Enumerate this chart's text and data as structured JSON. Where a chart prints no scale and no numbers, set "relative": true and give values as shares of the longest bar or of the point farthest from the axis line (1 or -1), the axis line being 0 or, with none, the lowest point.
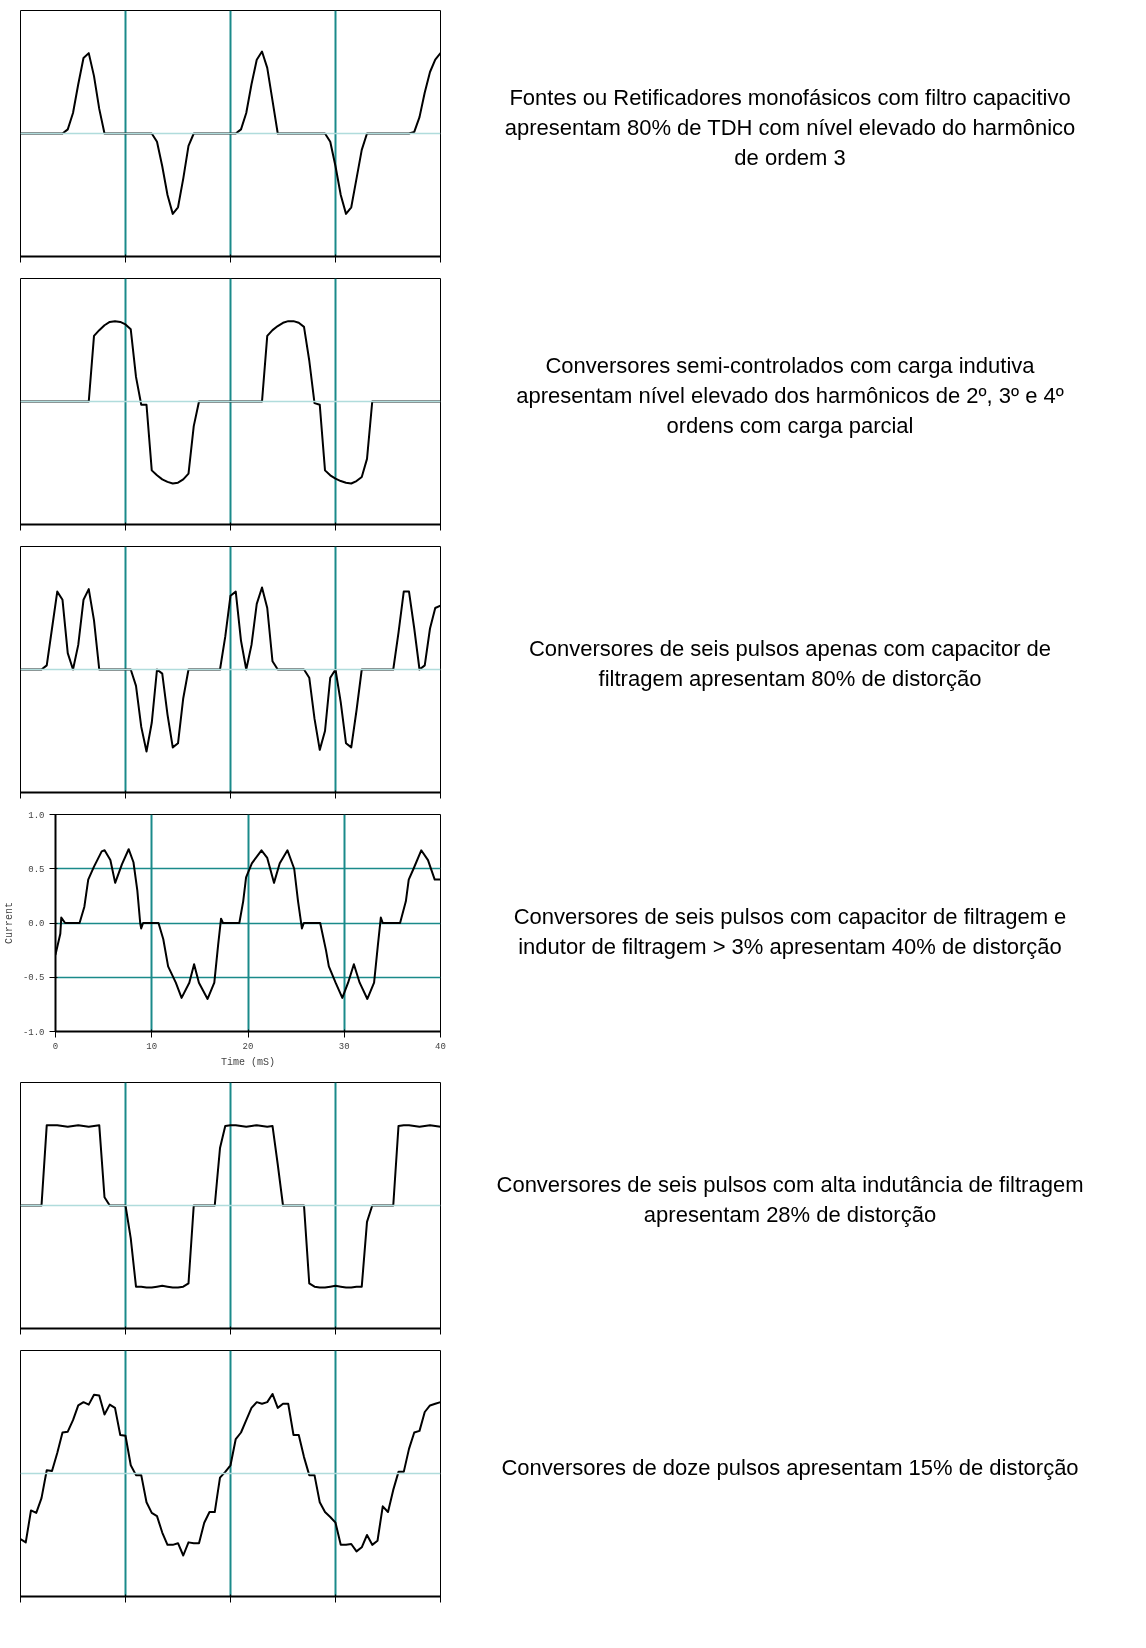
{
  "chart_data": [
    {
      "type": "line",
      "relative": true,
      "color": "#000000",
      "grid": "x",
      "categories": [
        null,
        null,
        null,
        null,
        null,
        null,
        null,
        null,
        null,
        null,
        null,
        null,
        null,
        null,
        null,
        null,
        null,
        null,
        null,
        null,
        null,
        null,
        null,
        null,
        null,
        null,
        null,
        null,
        null,
        null,
        null,
        null,
        null,
        null,
        null,
        null,
        null,
        null,
        null,
        null,
        null,
        null,
        null,
        null,
        null,
        null,
        null,
        null,
        null,
        null,
        null,
        null,
        null,
        null,
        null,
        null,
        null,
        null,
        null,
        null,
        null,
        null,
        null,
        null,
        null,
        null,
        null,
        null,
        null,
        null,
        null,
        null,
        null,
        null,
        null,
        null,
        null,
        null,
        null,
        null,
        null
      ],
      "ref_lines": [
        {
          "axis": "y",
          "value": 0,
          "color": "#b0dcdc"
        }
      ],
      "values": [
        0,
        0,
        0,
        0,
        0,
        0,
        0,
        0,
        0,
        0.05,
        0.25,
        0.6,
        0.92,
        0.98,
        0.7,
        0.3,
        0,
        0,
        0,
        0,
        0,
        0,
        0,
        0,
        0,
        0,
        -0.1,
        -0.4,
        -0.75,
        -0.98,
        -0.9,
        -0.55,
        -0.15,
        0,
        0,
        0,
        0,
        0,
        0,
        0,
        0,
        0,
        0.05,
        0.25,
        0.6,
        0.9,
        1,
        0.8,
        0.4,
        0,
        0,
        0,
        0,
        0,
        0,
        0,
        0,
        0,
        0,
        -0.1,
        -0.4,
        -0.75,
        -0.98,
        -0.9,
        -0.55,
        -0.2,
        0,
        0,
        0,
        0,
        0,
        0,
        0,
        0,
        0,
        0.02,
        0.2,
        0.5,
        0.75,
        0.9,
        0.98
      ],
      "annotations": [
        "Fontes ou Retificadores monofásicos com filtro capacitivo apresentam 80% de TDH com nível elevado do harmônico de ordem 3"
      ]
    },
    {
      "type": "line",
      "relative": true,
      "color": "#000000",
      "grid": "x",
      "categories": [
        null,
        null,
        null,
        null,
        null,
        null,
        null,
        null,
        null,
        null,
        null,
        null,
        null,
        null,
        null,
        null,
        null,
        null,
        null,
        null,
        null,
        null,
        null,
        null,
        null,
        null,
        null,
        null,
        null,
        null,
        null,
        null,
        null,
        null,
        null,
        null,
        null,
        null,
        null,
        null,
        null,
        null,
        null,
        null,
        null,
        null,
        null,
        null,
        null,
        null,
        null,
        null,
        null,
        null,
        null,
        null,
        null,
        null,
        null,
        null,
        null,
        null,
        null,
        null,
        null,
        null,
        null,
        null,
        null,
        null,
        null,
        null,
        null,
        null,
        null,
        null,
        null,
        null,
        null,
        null,
        null
      ],
      "ref_lines": [
        {
          "axis": "y",
          "value": 0,
          "color": "#b0dcdc"
        }
      ],
      "values": [
        0,
        0,
        0,
        0,
        0,
        0,
        0,
        0,
        0,
        0,
        0,
        0,
        0,
        0,
        0.8,
        0.87,
        0.93,
        0.97,
        0.98,
        0.97,
        0.94,
        0.88,
        0.3,
        -0.04,
        -0.04,
        -0.84,
        -0.9,
        -0.95,
        -0.98,
        -1,
        -0.99,
        -0.95,
        -0.88,
        -0.3,
        0,
        0,
        0,
        0,
        0,
        0,
        0,
        0,
        0,
        0,
        0,
        0,
        0,
        0.8,
        0.87,
        0.92,
        0.96,
        0.98,
        0.98,
        0.96,
        0.91,
        0.5,
        -0.02,
        -0.04,
        -0.84,
        -0.9,
        -0.94,
        -0.97,
        -0.99,
        -1,
        -0.97,
        -0.92,
        -0.7,
        0,
        0,
        0,
        0,
        0,
        0,
        0,
        0,
        0,
        0,
        0,
        0,
        0,
        0
      ],
      "annotations": [
        "Conversores semi-controlados com carga indutiva apresentam nível elevado dos harmônicos de 2º, 3º e 4º ordens com carga parcial"
      ]
    },
    {
      "type": "line",
      "relative": true,
      "color": "#000000",
      "grid": "x",
      "categories": [
        null,
        null,
        null,
        null,
        null,
        null,
        null,
        null,
        null,
        null,
        null,
        null,
        null,
        null,
        null,
        null,
        null,
        null,
        null,
        null,
        null,
        null,
        null,
        null,
        null,
        null,
        null,
        null,
        null,
        null,
        null,
        null,
        null,
        null,
        null,
        null,
        null,
        null,
        null,
        null,
        null,
        null,
        null,
        null,
        null,
        null,
        null,
        null,
        null,
        null,
        null,
        null,
        null,
        null,
        null,
        null,
        null,
        null,
        null,
        null,
        null,
        null,
        null,
        null,
        null,
        null,
        null,
        null,
        null,
        null,
        null,
        null,
        null,
        null,
        null,
        null,
        null,
        null,
        null,
        null,
        null
      ],
      "ref_lines": [
        {
          "axis": "y",
          "value": 0,
          "color": "#b0dcdc"
        }
      ],
      "values": [
        0,
        0,
        0,
        0,
        0,
        0.05,
        0.5,
        0.95,
        0.85,
        0.2,
        0,
        0.3,
        0.85,
        0.98,
        0.6,
        0,
        0,
        0,
        0,
        0,
        0,
        0,
        -0.2,
        -0.7,
        -1,
        -0.65,
        0,
        -0.05,
        -0.55,
        -0.95,
        -0.9,
        -0.35,
        0,
        0,
        0,
        0,
        0,
        0,
        0,
        0.4,
        0.9,
        0.95,
        0.35,
        0,
        0.3,
        0.8,
        1,
        0.75,
        0.1,
        0,
        0,
        0,
        0,
        0,
        0,
        -0.1,
        -0.6,
        -0.98,
        -0.75,
        -0.1,
        0,
        -0.4,
        -0.9,
        -0.95,
        -0.5,
        0,
        0,
        0,
        0,
        0,
        0,
        0,
        0.45,
        0.95,
        0.95,
        0.5,
        0,
        0.05,
        0.5,
        0.75,
        0.78
      ],
      "annotations": [
        "Conversores de seis pulsos apenas com capacitor de filtragem apresentam 80% de distorção"
      ]
    },
    {
      "type": "line",
      "color": "#000000",
      "grid": true,
      "xlabel": "Time (mS)",
      "ylabel": "Current",
      "xlim": [
        0,
        40
      ],
      "ylim": [
        -1,
        1
      ],
      "xticks": [
        0,
        10,
        20,
        30,
        40
      ],
      "yticks": [
        {
          "value": -1,
          "label": "-1.0"
        },
        {
          "value": -0.5,
          "label": "-0.5"
        },
        {
          "value": 0,
          "label": "0.0"
        },
        {
          "value": 0.5,
          "label": "0.5"
        },
        {
          "value": 1,
          "label": "1.0"
        }
      ],
      "x": [
        0,
        0.5,
        0.6,
        1.0,
        2.5,
        3.0,
        3.4,
        4.0,
        4.8,
        5.1,
        5.7,
        6.2,
        6.9,
        7.6,
        8.1,
        8.5,
        8.8,
        8.9,
        9.1,
        10.7,
        11.2,
        11.7,
        12.5,
        13.1,
        13.9,
        14.4,
        14.9,
        15.8,
        16.5,
        16.9,
        17.2,
        17.4,
        19.1,
        19.5,
        19.8,
        20.4,
        21.4,
        22.0,
        22.7,
        23.3,
        24.1,
        24.8,
        25.2,
        25.6,
        25.8,
        27.5,
        28.1,
        28.4,
        29.1,
        29.8,
        30.4,
        31.0,
        31.6,
        32.4,
        33.1,
        33.5,
        33.8,
        34.0,
        35.8,
        36.4,
        36.7,
        37.2,
        38.0,
        38.7,
        39.4,
        40
      ],
      "values": [
        -0.29,
        -0.1,
        0.05,
        0,
        0,
        0.15,
        0.4,
        0.52,
        0.66,
        0.67,
        0.58,
        0.37,
        0.54,
        0.68,
        0.56,
        0.3,
        0,
        -0.05,
        0,
        0,
        -0.15,
        -0.4,
        -0.55,
        -0.69,
        -0.55,
        -0.38,
        -0.55,
        -0.7,
        -0.55,
        -0.2,
        0.04,
        0,
        0,
        0.2,
        0.42,
        0.55,
        0.67,
        0.6,
        0.37,
        0.55,
        0.67,
        0.5,
        0.2,
        -0.05,
        0,
        0,
        -0.25,
        -0.4,
        -0.55,
        -0.69,
        -0.55,
        -0.38,
        -0.55,
        -0.7,
        -0.55,
        -0.2,
        0.05,
        0,
        0,
        0.2,
        0.4,
        0.5,
        0.67,
        0.58,
        0.4,
        0.4
      ],
      "annotations": [
        "Conversores de seis pulsos com capacitor de filtragem e indutor de filtragem > 3% apresentam 40% de distorção"
      ]
    },
    {
      "type": "line",
      "relative": true,
      "color": "#000000",
      "grid": "x",
      "categories": [
        null,
        null,
        null,
        null,
        null,
        null,
        null,
        null,
        null,
        null,
        null,
        null,
        null,
        null,
        null,
        null,
        null,
        null,
        null,
        null,
        null,
        null,
        null,
        null,
        null,
        null,
        null,
        null,
        null,
        null,
        null,
        null,
        null,
        null,
        null,
        null,
        null,
        null,
        null,
        null,
        null,
        null,
        null,
        null,
        null,
        null,
        null,
        null,
        null,
        null,
        null,
        null,
        null,
        null,
        null,
        null,
        null,
        null,
        null,
        null,
        null,
        null,
        null,
        null,
        null,
        null,
        null,
        null,
        null,
        null,
        null,
        null,
        null,
        null,
        null,
        null,
        null,
        null,
        null,
        null,
        null
      ],
      "ref_lines": [
        {
          "axis": "y",
          "value": 0,
          "color": "#b0dcdc"
        }
      ],
      "values": [
        0,
        0,
        0,
        0,
        0,
        0.98,
        0.98,
        0.98,
        0.97,
        0.96,
        0.97,
        0.98,
        0.97,
        0.96,
        0.97,
        0.98,
        0.1,
        0,
        0,
        0,
        0,
        -0.4,
        -0.99,
        -0.99,
        -1,
        -1,
        -0.99,
        -0.98,
        -0.99,
        -1,
        -1,
        -0.99,
        -0.95,
        0,
        0,
        0,
        0,
        0,
        0.7,
        0.97,
        0.98,
        0.98,
        0.97,
        0.96,
        0.97,
        0.98,
        0.97,
        0.96,
        0.97,
        0.5,
        0,
        0,
        0,
        0,
        0,
        -0.95,
        -0.99,
        -1,
        -1,
        -0.99,
        -0.98,
        -0.99,
        -1,
        -1,
        -0.99,
        -0.99,
        -0.2,
        0,
        0,
        0,
        0,
        0,
        0.97,
        0.98,
        0.98,
        0.97,
        0.96,
        0.97,
        0.98,
        0.97,
        0.96
      ],
      "annotations": [
        "Conversores de seis pulsos com alta indutância de filtragem apresentam 28% de distorção"
      ]
    },
    {
      "type": "line",
      "relative": true,
      "color": "#000000",
      "grid": "x",
      "categories": [
        null,
        null,
        null,
        null,
        null,
        null,
        null,
        null,
        null,
        null,
        null,
        null,
        null,
        null,
        null,
        null,
        null,
        null,
        null,
        null,
        null,
        null,
        null,
        null,
        null,
        null,
        null,
        null,
        null,
        null,
        null,
        null,
        null,
        null,
        null,
        null,
        null,
        null,
        null,
        null,
        null,
        null,
        null,
        null,
        null,
        null,
        null,
        null,
        null,
        null,
        null,
        null,
        null,
        null,
        null,
        null,
        null,
        null,
        null,
        null,
        null,
        null,
        null,
        null,
        null,
        null,
        null,
        null,
        null,
        null,
        null,
        null,
        null,
        null,
        null,
        null,
        null,
        null,
        null,
        null,
        null
      ],
      "ref_lines": [
        {
          "axis": "y",
          "value": 0,
          "color": "#b0dcdc"
        }
      ],
      "values": [
        -0.8,
        -0.84,
        -0.45,
        -0.48,
        -0.3,
        0.04,
        0.03,
        0.25,
        0.5,
        0.51,
        0.65,
        0.83,
        0.87,
        0.84,
        0.96,
        0.95,
        0.72,
        0.84,
        0.8,
        0.47,
        0.46,
        0.1,
        -0.02,
        -0.02,
        -0.35,
        -0.48,
        -0.52,
        -0.72,
        -0.87,
        -0.87,
        -0.85,
        -1,
        -0.84,
        -0.85,
        -0.85,
        -0.6,
        -0.47,
        -0.47,
        -0.05,
        0.02,
        0.1,
        0.42,
        0.5,
        0.65,
        0.8,
        0.87,
        0.85,
        0.87,
        0.97,
        0.8,
        0.85,
        0.85,
        0.47,
        0.47,
        0.2,
        -0.02,
        -0.02,
        -0.35,
        -0.47,
        -0.53,
        -0.6,
        -0.87,
        -0.87,
        -0.86,
        -0.95,
        -0.9,
        -0.75,
        -0.87,
        -0.82,
        -0.4,
        -0.47,
        -0.2,
        0.02,
        0.02,
        0.3,
        0.5,
        0.52,
        0.75,
        0.83,
        0.85,
        0.87
      ],
      "annotations": [
        "Conversores de doze pulsos apresentam 15% de distorção"
      ]
    }
  ]
}
